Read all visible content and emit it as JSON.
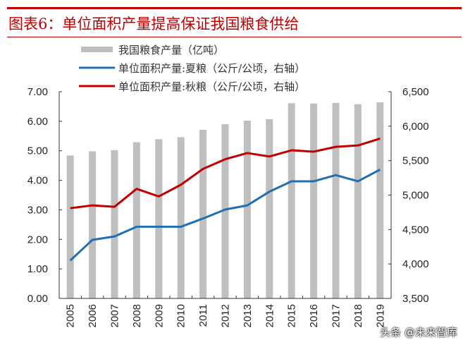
{
  "title": "图表6：单位面积产量提高保证我国粮食供给",
  "watermark": "头条 @未来智库",
  "chart_data": {
    "type": "bar+line",
    "title": "图表6：单位面积产量提高保证我国粮食供给",
    "categories": [
      "2005",
      "2006",
      "2007",
      "2008",
      "2009",
      "2010",
      "2011",
      "2012",
      "2013",
      "2014",
      "2015",
      "2016",
      "2017",
      "2018",
      "2019"
    ],
    "y_left": {
      "range": [
        0,
        7
      ],
      "ticks": [
        "0.00",
        "1.00",
        "2.00",
        "3.00",
        "4.00",
        "5.00",
        "6.00",
        "7.00"
      ]
    },
    "y_right": {
      "range": [
        3500,
        6500
      ],
      "ticks": [
        "3,500",
        "4,000",
        "4,500",
        "5,000",
        "5,500",
        "6,000",
        "6,500"
      ]
    },
    "legend_position": "top",
    "grid": false,
    "series": [
      {
        "name": "我国粮食产量（亿吨）",
        "type": "bar",
        "axis": "left",
        "color": "#bfbfbf",
        "values": [
          4.84,
          4.98,
          5.02,
          5.29,
          5.39,
          5.46,
          5.71,
          5.9,
          6.02,
          6.07,
          6.61,
          6.6,
          6.62,
          6.58,
          6.64
        ]
      },
      {
        "name": "单位面积产量:夏粮（公斤/公顷，右轴）",
        "type": "line",
        "axis": "right",
        "color": "#1f6fb4",
        "values": [
          4050,
          4350,
          4400,
          4540,
          4540,
          4540,
          4660,
          4790,
          4850,
          5050,
          5200,
          5200,
          5290,
          5200,
          5370
        ]
      },
      {
        "name": "单位面积产量:秋粮（公斤/公顷，右轴）",
        "type": "line",
        "axis": "right",
        "color": "#c00000",
        "values": [
          4810,
          4850,
          4830,
          5090,
          4980,
          5150,
          5380,
          5520,
          5610,
          5560,
          5650,
          5630,
          5700,
          5720,
          5820
        ]
      }
    ]
  }
}
